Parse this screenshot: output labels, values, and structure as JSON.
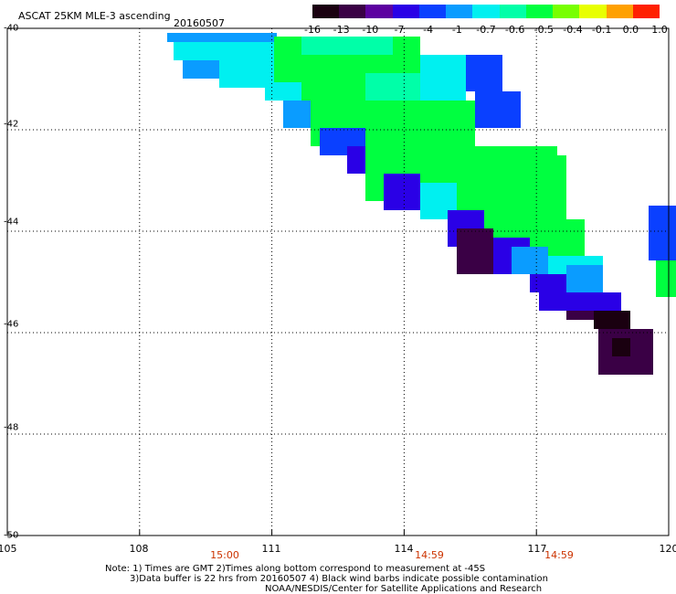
{
  "header": {
    "title": "ASCAT 25KM MLE-3 ascending",
    "date": "20160507"
  },
  "colorbar": {
    "labels": [
      "-16",
      "-13",
      "-10",
      "-7",
      "-4",
      "-1",
      "-0.7",
      "-0.6",
      "-0.5",
      "-0.4",
      "-0.1",
      "0.0",
      "1.0"
    ],
    "colors": [
      "#1a0010",
      "#3a0045",
      "#5c00a0",
      "#2a00e6",
      "#0a40ff",
      "#0a9cff",
      "#00f0f0",
      "#00ffa8",
      "#00ff40",
      "#78ff00",
      "#e8ff00",
      "#ffa000",
      "#ff2000"
    ]
  },
  "axes": {
    "x_ticks": [
      "105",
      "108",
      "111",
      "114",
      "117",
      "120"
    ],
    "y_ticks": [
      "-40",
      "-42",
      "-44",
      "-46",
      "-48",
      "-50"
    ],
    "x_range": [
      105,
      120
    ],
    "y_range": [
      -40,
      -50
    ]
  },
  "time_labels": [
    "15:00",
    "14:59",
    "14:59"
  ],
  "notes": {
    "line1": "Note: 1) Times are GMT 2)Times along bottom correspond to measurement at -45S",
    "line2": "3)Data buffer is 22 hrs from 20160507 4) Black wind barbs indicate possible contamination",
    "line3": "NOAA/NESDIS/Center for Satellite Applications and Research"
  }
}
